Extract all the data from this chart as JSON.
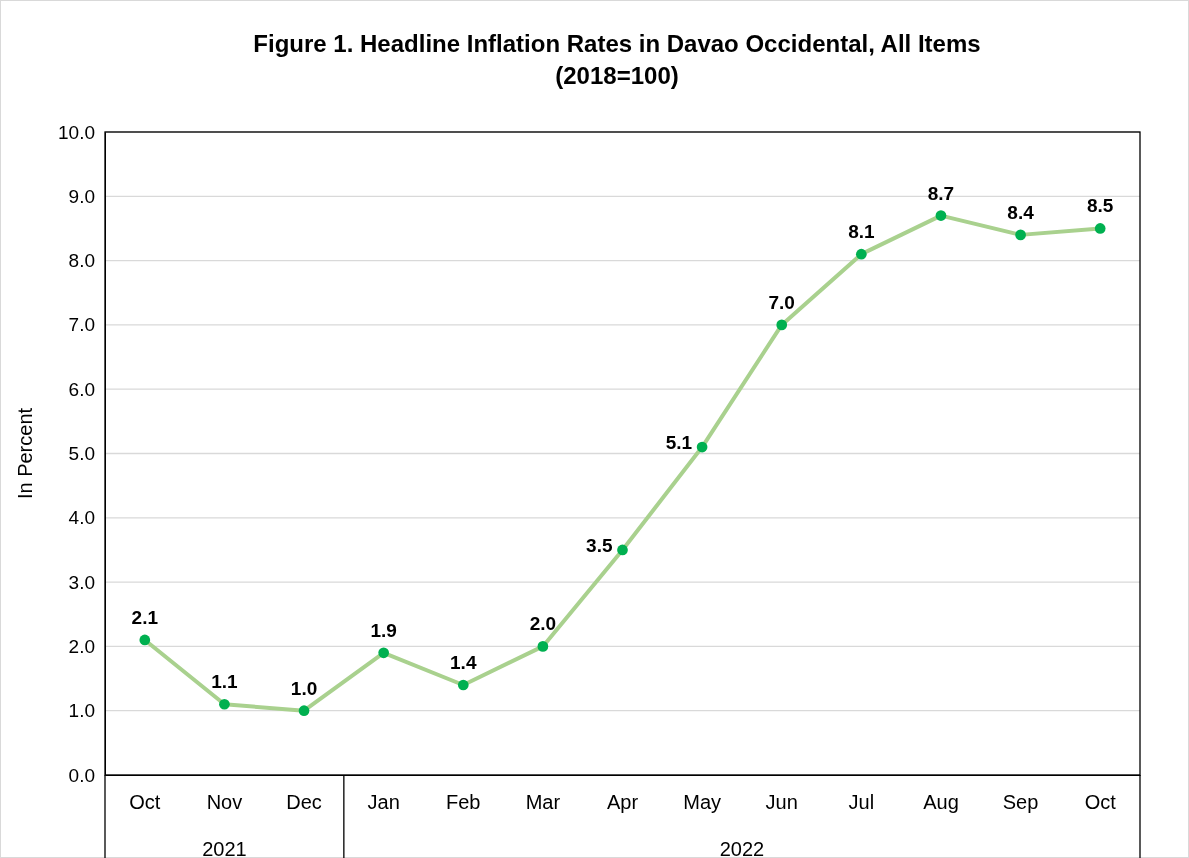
{
  "chart_data": {
    "type": "line",
    "title": "Figure 1. Headline Inflation Rates in Davao Occidental, All Items",
    "subtitle": "(2018=100)",
    "ylabel": "In Percent",
    "categories": [
      "Oct",
      "Nov",
      "Dec",
      "Jan",
      "Feb",
      "Mar",
      "Apr",
      "May",
      "Jun",
      "Jul",
      "Aug",
      "Sep",
      "Oct"
    ],
    "series": [
      {
        "color": "#a9d18e",
        "values": [
          2.1,
          1.1,
          1.0,
          1.9,
          1.4,
          2.0,
          3.5,
          5.1,
          7.0,
          8.1,
          8.7,
          8.4,
          8.5
        ],
        "value_labels": [
          "2.1",
          "1.1",
          "1.0",
          "1.9",
          "1.4",
          "2.0",
          "3.5",
          "5.1",
          "7.0",
          "8.1",
          "8.7",
          "8.4",
          "8.5"
        ]
      }
    ],
    "marker": "circle",
    "line_style": "solid",
    "grid": "y",
    "ylim": [
      0,
      10
    ],
    "yticks": [
      {
        "value": 0,
        "label": "0.0"
      },
      {
        "value": 1,
        "label": "1.0"
      },
      {
        "value": 2,
        "label": "2.0"
      },
      {
        "value": 3,
        "label": "3.0"
      },
      {
        "value": 4,
        "label": "4.0"
      },
      {
        "value": 5,
        "label": "5.0"
      },
      {
        "value": 6,
        "label": "6.0"
      },
      {
        "value": 7,
        "label": "7.0"
      },
      {
        "value": 8,
        "label": "8.0"
      },
      {
        "value": 9,
        "label": "9.0"
      },
      {
        "value": 10,
        "label": "10.0"
      }
    ],
    "annotations": [
      "2021",
      "2022"
    ]
  }
}
